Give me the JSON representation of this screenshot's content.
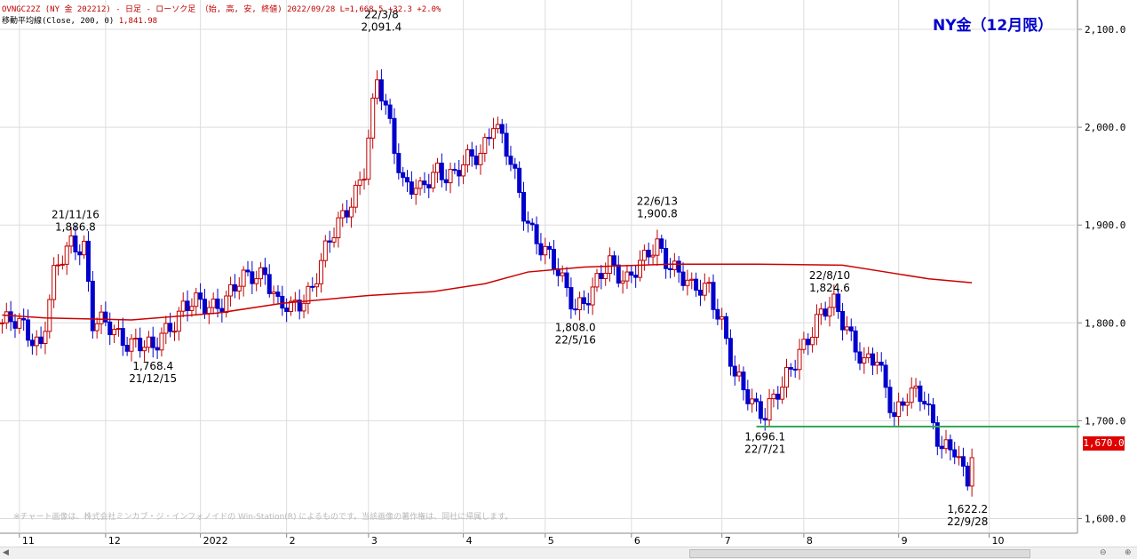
{
  "header": {
    "line1": "OVNGC22Z (NY 金 202212) - 日足 - ローソク足 （始, 高, 安, 終値)  2022/09/28  L=1,668.5  +32.3  +2.0%",
    "line2_label": "移動平均線(Close, 200, 0)",
    "line2_value": "1,841.98"
  },
  "title": "NY金（12月限）",
  "copyright": "※チャート画像は、株式会社ミンカブ・ジ・インフォノイドの Win-Station(R) によるものです。当該画像の著作権は、同社に帰属します。",
  "price_badge": "1,670.0",
  "colors": {
    "up": "#c00000",
    "down": "#0000cc",
    "ma": "#cc0000",
    "support": "#33aa55",
    "badge": "#e00000"
  },
  "chart_data": {
    "type": "candlestick",
    "y_range": [
      1585,
      2130
    ],
    "y_ticks": [
      {
        "value": 1600,
        "label": "1,600.0"
      },
      {
        "value": 1700,
        "label": "1,700.0"
      },
      {
        "value": 1800,
        "label": "1,800.0"
      },
      {
        "value": 1900,
        "label": "1,900.0"
      },
      {
        "value": 2000,
        "label": "2,000.0"
      },
      {
        "value": 2100,
        "label": "2,100.0"
      }
    ],
    "x_labels": [
      {
        "label": "11",
        "index": 4
      },
      {
        "label": "12",
        "index": 24
      },
      {
        "label": "2022",
        "index": 46
      },
      {
        "label": "2",
        "index": 66
      },
      {
        "label": "3",
        "index": 85
      },
      {
        "label": "4",
        "index": 107
      },
      {
        "label": "5",
        "index": 126
      },
      {
        "label": "6",
        "index": 146
      },
      {
        "label": "7",
        "index": 167
      },
      {
        "label": "8",
        "index": 186
      },
      {
        "label": "9",
        "index": 208
      },
      {
        "label": "10",
        "index": 229
      }
    ],
    "total_slots": 250,
    "grid": true,
    "waypoints": [
      [
        0,
        1800
      ],
      [
        5,
        1795
      ],
      [
        9,
        1780
      ],
      [
        12,
        1845
      ],
      [
        16,
        1882
      ],
      [
        19,
        1882
      ],
      [
        21,
        1800
      ],
      [
        25,
        1793
      ],
      [
        31,
        1780
      ],
      [
        35,
        1768
      ],
      [
        37,
        1790
      ],
      [
        42,
        1815
      ],
      [
        47,
        1818
      ],
      [
        52,
        1825
      ],
      [
        58,
        1850
      ],
      [
        61,
        1855
      ],
      [
        64,
        1815
      ],
      [
        67,
        1812
      ],
      [
        72,
        1840
      ],
      [
        76,
        1880
      ],
      [
        80,
        1920
      ],
      [
        84,
        1955
      ],
      [
        87,
        2045
      ],
      [
        90,
        2005
      ],
      [
        93,
        1945
      ],
      [
        97,
        1930
      ],
      [
        101,
        1960
      ],
      [
        105,
        1950
      ],
      [
        111,
        1975
      ],
      [
        114,
        2010
      ],
      [
        118,
        1960
      ],
      [
        121,
        1915
      ],
      [
        125,
        1880
      ],
      [
        130,
        1840
      ],
      [
        133,
        1820
      ],
      [
        137,
        1830
      ],
      [
        141,
        1860
      ],
      [
        145,
        1848
      ],
      [
        149,
        1860
      ],
      [
        152,
        1880
      ],
      [
        156,
        1858
      ],
      [
        160,
        1830
      ],
      [
        164,
        1840
      ],
      [
        167,
        1800
      ],
      [
        170,
        1740
      ],
      [
        174,
        1722
      ],
      [
        177,
        1710
      ],
      [
        181,
        1730
      ],
      [
        185,
        1775
      ],
      [
        189,
        1800
      ],
      [
        193,
        1818
      ],
      [
        196,
        1800
      ],
      [
        200,
        1755
      ],
      [
        203,
        1760
      ],
      [
        207,
        1710
      ],
      [
        210,
        1725
      ],
      [
        214,
        1720
      ],
      [
        218,
        1678
      ],
      [
        221,
        1668
      ],
      [
        223,
        1640
      ],
      [
        224,
        1635
      ],
      [
        225,
        1668
      ]
    ],
    "ma200": [
      [
        0,
        1808
      ],
      [
        10,
        1805
      ],
      [
        30,
        1803
      ],
      [
        50,
        1810
      ],
      [
        65,
        1820
      ],
      [
        85,
        1828
      ],
      [
        100,
        1832
      ],
      [
        112,
        1840
      ],
      [
        122,
        1852
      ],
      [
        135,
        1857
      ],
      [
        155,
        1860
      ],
      [
        175,
        1860
      ],
      [
        195,
        1859
      ],
      [
        205,
        1852
      ],
      [
        215,
        1845
      ],
      [
        225,
        1841
      ]
    ],
    "support_line": {
      "value": 1694,
      "from_index": 175,
      "to_index": 250
    },
    "annotations": [
      {
        "index": 17,
        "date": "21/11/16",
        "price": "1,886.8",
        "position": "above",
        "anchor": 1886.8
      },
      {
        "index": 35,
        "date": "21/12/15",
        "price": "1,768.4",
        "position": "below",
        "anchor": 1768.4
      },
      {
        "index": 88,
        "date": "22/3/8",
        "price": "2,091.4",
        "position": "above",
        "anchor": 2091.4
      },
      {
        "index": 133,
        "date": "22/5/16",
        "price": "1,808.0",
        "position": "below",
        "anchor": 1808.0
      },
      {
        "index": 152,
        "date": "22/6/13",
        "price": "1,900.8",
        "position": "above",
        "anchor": 1900.8
      },
      {
        "index": 177,
        "date": "22/7/21",
        "price": "1,696.1",
        "position": "below",
        "anchor": 1696.1
      },
      {
        "index": 192,
        "date": "22/8/10",
        "price": "1,824.6",
        "position": "above",
        "anchor": 1824.6
      },
      {
        "index": 224,
        "date": "22/9/28",
        "price": "1,622.2",
        "position": "below",
        "anchor": 1622.2
      }
    ]
  }
}
